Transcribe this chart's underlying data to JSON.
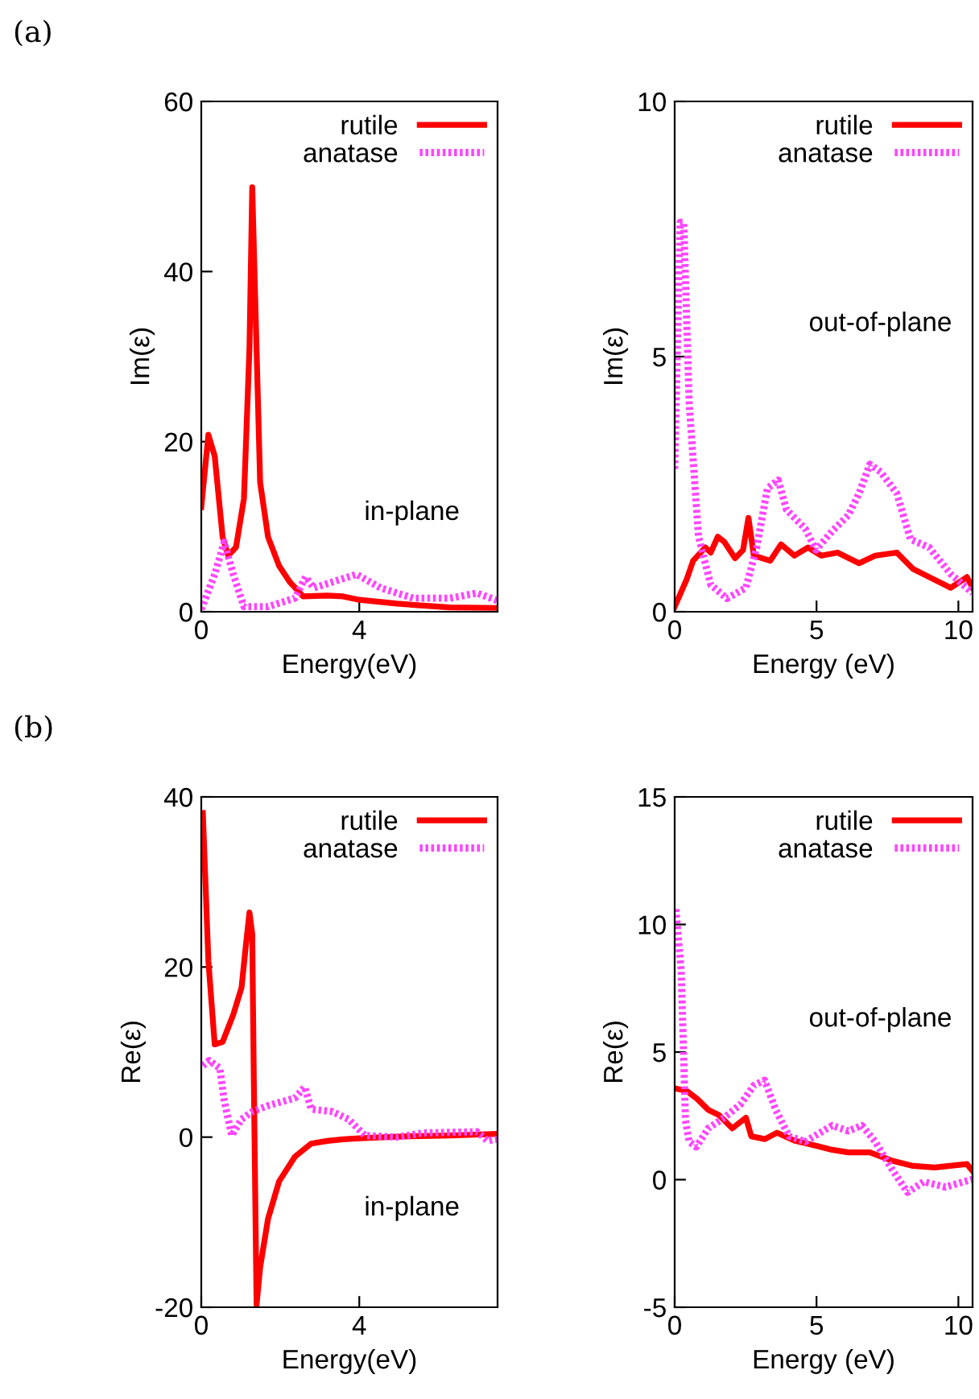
{
  "chart_data": [
    {
      "type": "line",
      "xlabel": "Energy(eV)",
      "ylabel": "Im(ε)",
      "annotations": [
        "(a)",
        "in-plane"
      ],
      "xlim": [
        0,
        7.5
      ],
      "ylim": [
        0,
        60
      ],
      "xticks": [
        0,
        4
      ],
      "yticks": [
        0,
        20,
        40,
        60
      ],
      "grid": false,
      "legend": "top right",
      "series": [
        {
          "name": "rutile",
          "color": "#ff0000",
          "line_style": "solid",
          "x": [
            0,
            0.18,
            0.34,
            0.54,
            0.68,
            0.88,
            1.08,
            1.22,
            1.29,
            1.37,
            1.49,
            1.69,
            1.97,
            2.24,
            2.58,
            3.19,
            3.59,
            4,
            4.95,
            6.3,
            7.5
          ],
          "values": [
            12.3,
            20.8,
            18.3,
            8.8,
            6.6,
            7.6,
            13.3,
            31,
            49.9,
            36,
            15.2,
            8.8,
            5.4,
            3.5,
            1.8,
            1.9,
            1.8,
            1.4,
            0.95,
            0.5,
            0.45
          ]
        },
        {
          "name": "anatase",
          "color": "#ff44ff",
          "line_style": "dotted",
          "x": [
            0,
            0.34,
            0.58,
            0.81,
            1.08,
            1.69,
            2.37,
            2.64,
            2.85,
            3.32,
            3.93,
            4.54,
            5.36,
            6.3,
            6.98,
            7.5
          ],
          "values": [
            0.3,
            4.4,
            8.2,
            4.4,
            0.6,
            0.6,
            1.6,
            4.1,
            2.8,
            3.5,
            4.4,
            2.8,
            1.6,
            1.6,
            2.2,
            1.3
          ]
        }
      ]
    },
    {
      "type": "line",
      "xlabel": "Energy (eV)",
      "ylabel": "Im(ε)",
      "annotations": [
        "out-of-plane"
      ],
      "xlim": [
        0,
        10.5
      ],
      "ylim": [
        0,
        10
      ],
      "xticks": [
        0,
        5,
        10
      ],
      "yticks": [
        0,
        5,
        10
      ],
      "grid": false,
      "legend": "top right",
      "series": [
        {
          "name": "rutile",
          "color": "#ff0000",
          "line_style": "solid",
          "x": [
            0,
            0.42,
            0.65,
            1.08,
            1.27,
            1.52,
            1.75,
            2.13,
            2.41,
            2.6,
            2.79,
            3.37,
            3.75,
            4.22,
            4.7,
            5.17,
            5.74,
            6.5,
            7.07,
            7.83,
            8.4,
            8.97,
            9.73,
            10.3,
            10.5
          ],
          "values": [
            0.1,
            0.63,
            1.0,
            1.26,
            1.16,
            1.47,
            1.37,
            1.05,
            1.21,
            1.84,
            1.1,
            1.0,
            1.32,
            1.1,
            1.26,
            1.1,
            1.16,
            0.95,
            1.1,
            1.16,
            0.84,
            0.68,
            0.47,
            0.68,
            0.47
          ]
        },
        {
          "name": "anatase",
          "color": "#ff44ff",
          "line_style": "dotted",
          "x": [
            0,
            0.19,
            0.32,
            0.51,
            0.84,
            1.27,
            1.84,
            2.51,
            2.89,
            3.27,
            3.65,
            3.94,
            4.6,
            4.98,
            5.55,
            6.12,
            6.5,
            6.88,
            7.26,
            7.83,
            8.31,
            8.97,
            9.73,
            10.5
          ],
          "values": [
            2.8,
            7.63,
            7.63,
            4.1,
            1.47,
            0.53,
            0.26,
            0.47,
            1.26,
            2.42,
            2.58,
            2.0,
            1.63,
            1.21,
            1.58,
            1.89,
            2.32,
            2.89,
            2.74,
            2.32,
            1.42,
            1.26,
            0.74,
            0.37
          ]
        }
      ]
    },
    {
      "type": "line",
      "xlabel": "Energy(eV)",
      "ylabel": "Re(ε)",
      "annotations": [
        "(b)",
        "in-plane"
      ],
      "xlim": [
        0,
        7.5
      ],
      "ylim": [
        -20,
        40
      ],
      "xticks": [
        0,
        4
      ],
      "yticks": [
        -20,
        0,
        20,
        40
      ],
      "grid": false,
      "legend": "top right",
      "series": [
        {
          "name": "rutile",
          "color": "#ff0000",
          "line_style": "solid",
          "x": [
            0.04,
            0.18,
            0.34,
            0.54,
            0.81,
            1.02,
            1.13,
            1.22,
            1.29,
            1.33,
            1.4,
            1.49,
            1.69,
            1.97,
            2.37,
            2.78,
            3.19,
            3.59,
            4,
            4.95,
            6.3,
            7.5
          ],
          "values": [
            38.1,
            20.7,
            10.9,
            11.2,
            14.4,
            17.6,
            22.6,
            26.4,
            23.9,
            6.8,
            -19.7,
            -15.3,
            -9.6,
            -5.2,
            -2.3,
            -0.76,
            -0.44,
            -0.25,
            -0.13,
            0.06,
            0.19,
            0.38
          ]
        },
        {
          "name": "anatase",
          "color": "#ff44ff",
          "line_style": "dotted",
          "x": [
            0.04,
            0.2,
            0.47,
            0.58,
            0.77,
            1.02,
            1.29,
            1.69,
            2.37,
            2.62,
            2.78,
            3.32,
            3.73,
            4.14,
            4.95,
            5.63,
            6.98,
            7.25,
            7.5
          ],
          "values": [
            8.4,
            9.0,
            8.1,
            4.3,
            0.19,
            2.1,
            3.0,
            3.7,
            4.6,
            5.9,
            3.3,
            3.0,
            2.1,
            0.19,
            0,
            0.5,
            0.63,
            -0.44,
            -0.25
          ]
        }
      ]
    },
    {
      "type": "line",
      "xlabel": "Energy (eV)",
      "ylabel": "Re(ε)",
      "annotations": [
        "out-of-plane"
      ],
      "xlim": [
        0,
        10.5
      ],
      "ylim": [
        -5,
        15
      ],
      "xticks": [
        0,
        5,
        10
      ],
      "yticks": [
        -5,
        0,
        5,
        10,
        15
      ],
      "grid": false,
      "legend": "top right",
      "series": [
        {
          "name": "rutile",
          "color": "#ff0000",
          "line_style": "solid",
          "x": [
            0,
            0.42,
            0.8,
            1.18,
            1.56,
            2.03,
            2.51,
            2.7,
            3.18,
            3.61,
            4.22,
            4.79,
            5.55,
            6.12,
            6.88,
            7.64,
            8.4,
            9.16,
            10.3,
            10.5
          ],
          "values": [
            3.58,
            3.48,
            3.16,
            2.74,
            2.53,
            2.01,
            2.43,
            1.7,
            1.59,
            1.84,
            1.53,
            1.38,
            1.17,
            1.07,
            1.07,
            0.75,
            0.54,
            0.48,
            0.61,
            0.34
          ]
        },
        {
          "name": "anatase",
          "color": "#ff44ff",
          "line_style": "dotted",
          "x": [
            0.04,
            0.23,
            0.38,
            0.51,
            0.76,
            1.18,
            1.75,
            2.32,
            2.79,
            3.17,
            3.56,
            4.03,
            4.6,
            5.07,
            5.55,
            6.12,
            6.6,
            7.07,
            7.64,
            8.21,
            8.78,
            9.54,
            10.5
          ],
          "values": [
            10.6,
            8.19,
            2.32,
            1.49,
            1.28,
            2.01,
            2.43,
            2.95,
            3.69,
            3.9,
            2.74,
            1.7,
            1.49,
            1.8,
            2.12,
            1.91,
            2.12,
            1.49,
            0.44,
            -0.5,
            -0.08,
            -0.29,
            0.02
          ]
        }
      ]
    }
  ]
}
